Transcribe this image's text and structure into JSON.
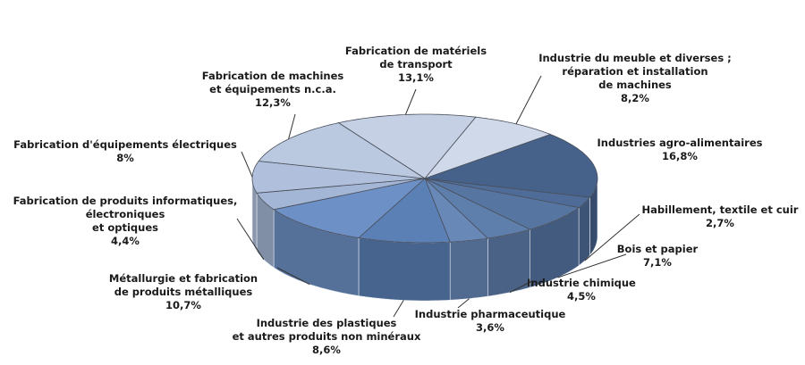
{
  "chart_data": {
    "type": "pie3d",
    "categories": [
      "Fabrication de matériels\nde transport",
      "Industrie du meuble et diverses ;\nréparation et installation\nde machines",
      "Industries agro-alimentaires",
      "Habillement, textile et cuir",
      "Bois et papier",
      "Industrie chimique",
      "Industrie pharmaceutique",
      "Industrie des plastiques\net autres produits non minéraux",
      "Métallurgie et fabrication\nde produits métalliques",
      "Fabrication de produits informatiques,\nélectroniques\net optiques",
      "Fabrication d'équipements électriques",
      "Fabrication de machines\net équipements n.c.a."
    ],
    "values": [
      13.1,
      8.2,
      16.8,
      2.7,
      7.1,
      4.5,
      3.6,
      8.6,
      10.7,
      4.4,
      8,
      12.3
    ],
    "value_labels": [
      "13,1%",
      "8,2%",
      "16,8%",
      "2,7%",
      "7,1%",
      "4,5%",
      "3,6%",
      "8,6%",
      "10,7%",
      "4,4%",
      "8%",
      "12,3%"
    ],
    "colors": [
      "#c5d0e4",
      "#d0d9e9",
      "#46628b",
      "#4f6c98",
      "#5675a1",
      "#5e7eab",
      "#6888b8",
      "#5b80b6",
      "#6d91c6",
      "#a4b6d5",
      "#b0c0dc",
      "#bac8e0"
    ]
  }
}
